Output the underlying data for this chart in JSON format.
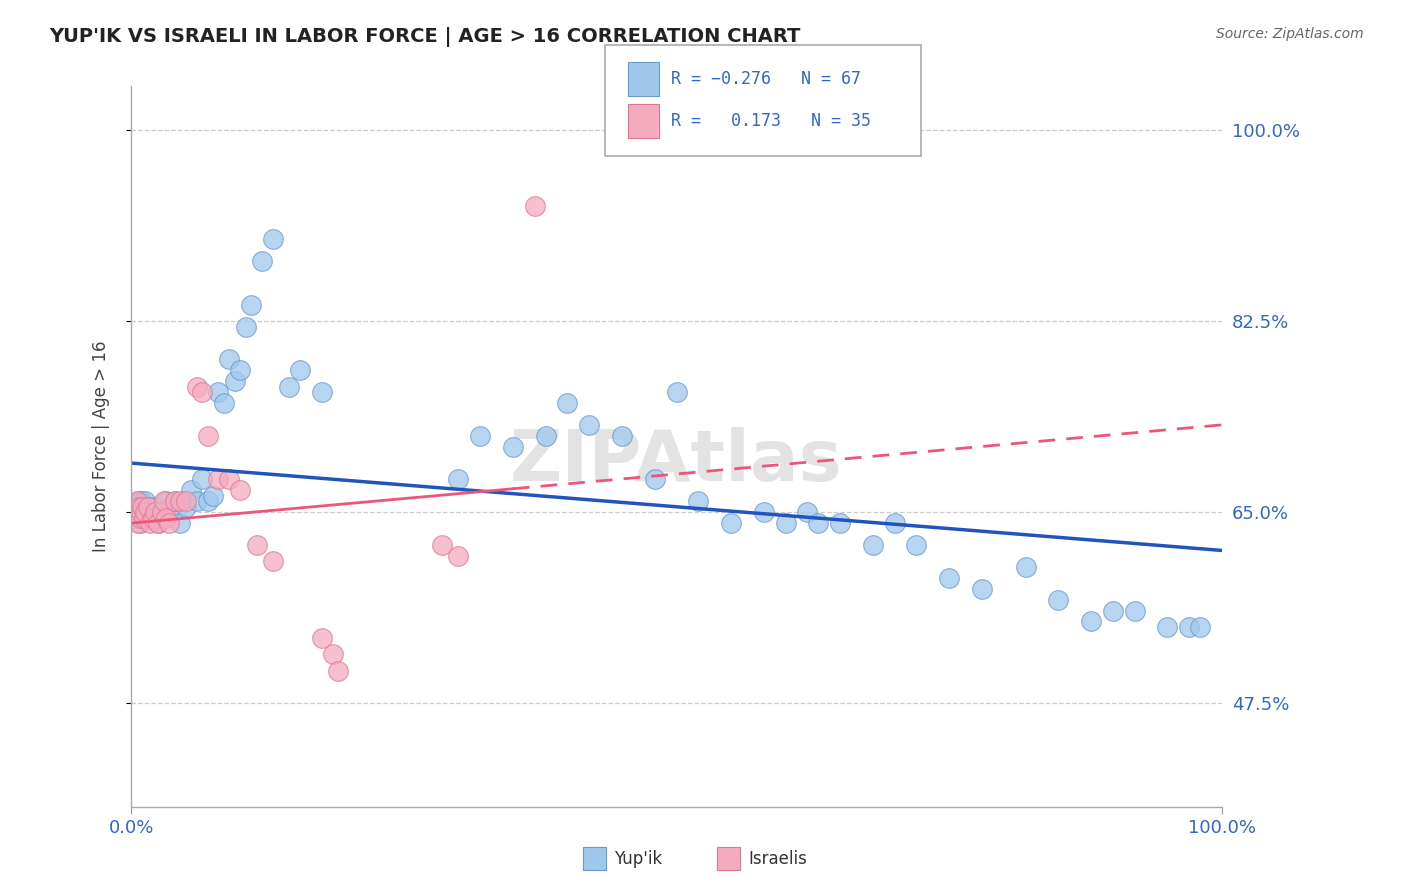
{
  "title": "YUP'IK VS ISRAELI IN LABOR FORCE | AGE > 16 CORRELATION CHART",
  "source_text": "Source: ZipAtlas.com",
  "ylabel": "In Labor Force | Age > 16",
  "xlim": [
    0.0,
    1.0
  ],
  "ylim": [
    0.38,
    1.04
  ],
  "yticks": [
    0.475,
    0.65,
    0.825,
    1.0
  ],
  "ytick_labels": [
    "47.5%",
    "65.0%",
    "82.5%",
    "100.0%"
  ],
  "xtick_labels": [
    "0.0%",
    "100.0%"
  ],
  "xticks": [
    0.0,
    1.0
  ],
  "blue_color": "#9FC8EC",
  "pink_color": "#F5ABBE",
  "blue_line_color": "#2255BB",
  "pink_line_color": "#EE5577",
  "blue_intercept": 0.695,
  "blue_slope": -0.08,
  "pink_intercept": 0.64,
  "pink_slope": 0.09,
  "watermark": "ZIPAtlas",
  "yupik_x": [
    0.005,
    0.007,
    0.008,
    0.009,
    0.01,
    0.011,
    0.012,
    0.013,
    0.015,
    0.016,
    0.018,
    0.02,
    0.022,
    0.025,
    0.028,
    0.03,
    0.032,
    0.035,
    0.04,
    0.045,
    0.05,
    0.055,
    0.06,
    0.065,
    0.07,
    0.075,
    0.08,
    0.085,
    0.09,
    0.095,
    0.1,
    0.105,
    0.11,
    0.12,
    0.13,
    0.145,
    0.155,
    0.175,
    0.3,
    0.32,
    0.35,
    0.38,
    0.4,
    0.42,
    0.45,
    0.48,
    0.5,
    0.52,
    0.55,
    0.58,
    0.6,
    0.62,
    0.63,
    0.65,
    0.68,
    0.7,
    0.72,
    0.75,
    0.78,
    0.82,
    0.85,
    0.88,
    0.9,
    0.92,
    0.95,
    0.97,
    0.98
  ],
  "yupik_y": [
    0.65,
    0.66,
    0.64,
    0.66,
    0.65,
    0.645,
    0.655,
    0.66,
    0.65,
    0.655,
    0.645,
    0.65,
    0.655,
    0.64,
    0.65,
    0.645,
    0.66,
    0.65,
    0.66,
    0.64,
    0.655,
    0.67,
    0.66,
    0.68,
    0.66,
    0.665,
    0.76,
    0.75,
    0.79,
    0.77,
    0.78,
    0.82,
    0.84,
    0.88,
    0.9,
    0.765,
    0.78,
    0.76,
    0.68,
    0.72,
    0.71,
    0.72,
    0.75,
    0.73,
    0.72,
    0.68,
    0.76,
    0.66,
    0.64,
    0.65,
    0.64,
    0.65,
    0.64,
    0.64,
    0.62,
    0.64,
    0.62,
    0.59,
    0.58,
    0.6,
    0.57,
    0.55,
    0.56,
    0.56,
    0.545,
    0.545,
    0.545
  ],
  "israeli_x": [
    0.003,
    0.005,
    0.006,
    0.007,
    0.008,
    0.009,
    0.01,
    0.012,
    0.013,
    0.015,
    0.017,
    0.02,
    0.022,
    0.025,
    0.028,
    0.03,
    0.032,
    0.035,
    0.04,
    0.045,
    0.05,
    0.06,
    0.065,
    0.07,
    0.08,
    0.09,
    0.1,
    0.115,
    0.13,
    0.175,
    0.185,
    0.19,
    0.37,
    0.285,
    0.3
  ],
  "israeli_y": [
    0.65,
    0.66,
    0.64,
    0.655,
    0.645,
    0.65,
    0.655,
    0.645,
    0.65,
    0.655,
    0.64,
    0.645,
    0.65,
    0.64,
    0.65,
    0.66,
    0.645,
    0.64,
    0.66,
    0.66,
    0.66,
    0.765,
    0.76,
    0.72,
    0.68,
    0.68,
    0.67,
    0.62,
    0.605,
    0.535,
    0.52,
    0.505,
    0.93,
    0.62,
    0.61
  ]
}
